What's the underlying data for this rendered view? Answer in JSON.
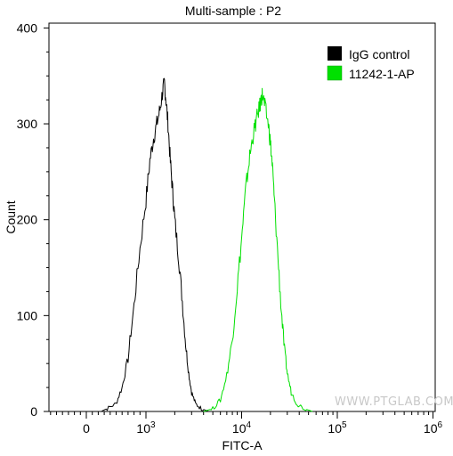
{
  "chart_data": {
    "type": "line",
    "title": "Multi-sample : P2",
    "xlabel": "FITC-A",
    "ylabel": "Count",
    "x_scale": "biexponential (log above ~10^3)",
    "x_tick_labels": [
      "0",
      "10^3",
      "10^4",
      "10^5",
      "10^6"
    ],
    "y_tick_labels": [
      "0",
      "100",
      "200",
      "300",
      "400"
    ],
    "ylim": [
      0,
      405
    ],
    "grid": false,
    "legend_position": "top-right",
    "series": [
      {
        "name": "IgG control",
        "color": "#000000",
        "points": [
          [
            250,
            0
          ],
          [
            350,
            3
          ],
          [
            500,
            8
          ],
          [
            600,
            25
          ],
          [
            700,
            55
          ],
          [
            800,
            110
          ],
          [
            900,
            170
          ],
          [
            1000,
            220
          ],
          [
            1100,
            262
          ],
          [
            1200,
            285
          ],
          [
            1300,
            300
          ],
          [
            1400,
            315
          ],
          [
            1500,
            335
          ],
          [
            1560,
            342
          ],
          [
            1620,
            325
          ],
          [
            1700,
            300
          ],
          [
            1800,
            260
          ],
          [
            1900,
            230
          ],
          [
            2000,
            200
          ],
          [
            2200,
            160
          ],
          [
            2400,
            115
          ],
          [
            2600,
            70
          ],
          [
            2800,
            40
          ],
          [
            3000,
            20
          ],
          [
            3300,
            8
          ],
          [
            3800,
            3
          ],
          [
            4500,
            0
          ]
        ]
      },
      {
        "name": "11242-1-AP",
        "color": "#00e000",
        "points": [
          [
            4000,
            0
          ],
          [
            5000,
            3
          ],
          [
            6000,
            12
          ],
          [
            7000,
            38
          ],
          [
            8000,
            75
          ],
          [
            9000,
            130
          ],
          [
            10000,
            180
          ],
          [
            11000,
            230
          ],
          [
            12000,
            262
          ],
          [
            13000,
            285
          ],
          [
            14000,
            300
          ],
          [
            15000,
            313
          ],
          [
            16000,
            325
          ],
          [
            16500,
            331
          ],
          [
            17500,
            318
          ],
          [
            19000,
            300
          ],
          [
            20000,
            280
          ],
          [
            21000,
            255
          ],
          [
            22000,
            220
          ],
          [
            24000,
            160
          ],
          [
            26000,
            105
          ],
          [
            28000,
            65
          ],
          [
            30000,
            40
          ],
          [
            33000,
            20
          ],
          [
            38000,
            8
          ],
          [
            45000,
            3
          ],
          [
            55000,
            0
          ]
        ]
      }
    ]
  },
  "watermark": "WWW.PTGLAB.COM"
}
